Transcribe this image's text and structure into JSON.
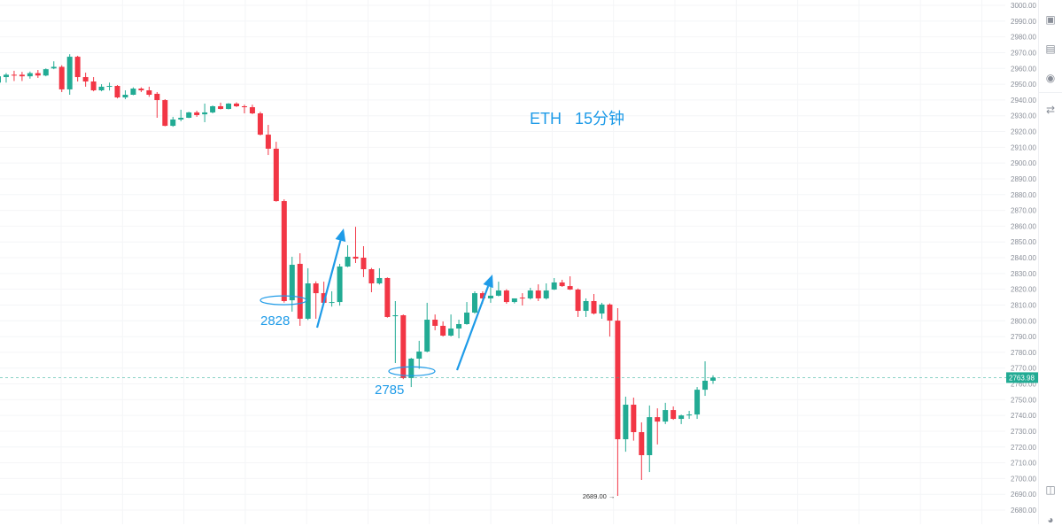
{
  "chart_data": {
    "type": "candlestick",
    "title": "",
    "annotation_title": "ETH   15分钟",
    "interval": "15分钟",
    "symbol": "ETH",
    "ylim": [
      2680,
      3000
    ],
    "yticks": [
      3000,
      2990,
      2980,
      2970,
      2960,
      2950,
      2940,
      2930,
      2920,
      2910,
      2900,
      2890,
      2880,
      2870,
      2860,
      2850,
      2840,
      2830,
      2820,
      2810,
      2800,
      2790,
      2780,
      2770,
      2760,
      2750,
      2740,
      2730,
      2720,
      2710,
      2700,
      2690,
      2680
    ],
    "ytick_decimals": 2,
    "grid": true,
    "colors": {
      "up": "#22ab94",
      "down": "#f23645",
      "annotation": "#1e9be8",
      "last_price_tag": "#22ab94"
    },
    "last_price": "2763.98",
    "low_marker": "2689.00",
    "low_marker_value": 2689.0,
    "annotations": [
      {
        "text": "2828",
        "price": 2813
      },
      {
        "text": "2785",
        "price": 2768
      }
    ],
    "ohlc": [
      [
        2951,
        2956,
        2950,
        2955
      ],
      [
        2954.5,
        2957,
        2951,
        2956
      ],
      [
        2956,
        2958.5,
        2952,
        2955.6
      ],
      [
        2956,
        2957.8,
        2952,
        2955
      ],
      [
        2955,
        2958,
        2953.5,
        2957
      ],
      [
        2957,
        2959,
        2954,
        2955.5
      ],
      [
        2955.5,
        2960,
        2955,
        2959.5
      ],
      [
        2960,
        2964.5,
        2959.5,
        2961
      ],
      [
        2961,
        2962,
        2945,
        2946.7
      ],
      [
        2946.7,
        2969,
        2943.3,
        2967.4
      ],
      [
        2967.4,
        2968,
        2951.7,
        2954.5
      ],
      [
        2954.5,
        2957.3,
        2948.4,
        2951.7
      ],
      [
        2951.7,
        2954.5,
        2945.5,
        2946.1
      ],
      [
        2946.1,
        2950,
        2945.5,
        2948.4
      ],
      [
        2948.4,
        2951,
        2946,
        2948.9
      ],
      [
        2948.9,
        2949.5,
        2941,
        2941.6
      ],
      [
        2941.6,
        2946.1,
        2940.5,
        2943.3
      ],
      [
        2943.3,
        2948,
        2943,
        2947.2
      ],
      [
        2947.2,
        2948,
        2945,
        2946.1
      ],
      [
        2946.1,
        2948.4,
        2942,
        2943.3
      ],
      [
        2943.9,
        2945,
        2928.7,
        2939.9
      ],
      [
        2939.9,
        2940.5,
        2923.3,
        2923.6
      ],
      [
        2923.6,
        2929.3,
        2923,
        2927.6
      ],
      [
        2927.6,
        2933.8,
        2926.5,
        2928.7
      ],
      [
        2928.7,
        2932.5,
        2928.5,
        2932.1
      ],
      [
        2932.1,
        2933.2,
        2929.3,
        2930.4
      ],
      [
        2930.9,
        2937.7,
        2925.9,
        2932.1
      ],
      [
        2932.1,
        2936.5,
        2931.5,
        2936
      ],
      [
        2936,
        2938.3,
        2934,
        2934.3
      ],
      [
        2934.3,
        2938,
        2934,
        2937.7
      ],
      [
        2937.7,
        2938.5,
        2935.5,
        2936
      ],
      [
        2936,
        2937,
        2931.5,
        2935.4
      ],
      [
        2935.4,
        2937,
        2931,
        2931.5
      ],
      [
        2931.5,
        2932.5,
        2917.5,
        2918
      ],
      [
        2918,
        2924.2,
        2905.1,
        2909.1
      ],
      [
        2909.1,
        2913.5,
        2875.5,
        2875.9
      ],
      [
        2875.9,
        2877,
        2811.5,
        2812.5
      ],
      [
        2813,
        2840.6,
        2805.8,
        2835.5
      ],
      [
        2836.1,
        2842.8,
        2796.8,
        2801.3
      ],
      [
        2801.3,
        2833.3,
        2800.5,
        2823.7
      ],
      [
        2823.7,
        2825,
        2801.3,
        2817.5
      ],
      [
        2817.5,
        2824.8,
        2811,
        2811.4
      ],
      [
        2811.4,
        2818.7,
        2809,
        2811.9
      ],
      [
        2811.9,
        2836.1,
        2809.6,
        2834.4
      ],
      [
        2834.4,
        2847.9,
        2834,
        2840.6
      ],
      [
        2840.6,
        2859.6,
        2836.6,
        2839.4
      ],
      [
        2840,
        2847.3,
        2827.7,
        2832.7
      ],
      [
        2832.7,
        2833.5,
        2818.1,
        2823.7
      ],
      [
        2823.7,
        2833.3,
        2823,
        2827.1
      ],
      [
        2827.1,
        2827.5,
        2802,
        2802.4
      ],
      [
        2802.9,
        2812.5,
        2773.2,
        2803.5
      ],
      [
        2803.5,
        2804,
        2763,
        2763.7
      ],
      [
        2763.7,
        2776.5,
        2758,
        2776
      ],
      [
        2776,
        2787.3,
        2769.5,
        2780.5
      ],
      [
        2780.5,
        2811.4,
        2780,
        2800.7
      ],
      [
        2800.7,
        2804,
        2794,
        2796.8
      ],
      [
        2796.8,
        2799.6,
        2790,
        2790.6
      ],
      [
        2790.6,
        2804,
        2790,
        2795.1
      ],
      [
        2795.1,
        2800.7,
        2788.9,
        2797.9
      ],
      [
        2797.9,
        2811.9,
        2797.5,
        2805.2
      ],
      [
        2805.2,
        2818.7,
        2804.5,
        2817.5
      ],
      [
        2817.5,
        2818.7,
        2811,
        2814.2
      ],
      [
        2814.2,
        2824.8,
        2811.4,
        2815.9
      ],
      [
        2815.9,
        2824.8,
        2815.5,
        2819.2
      ],
      [
        2819.2,
        2820,
        2810.8,
        2811.9
      ],
      [
        2811.9,
        2814,
        2811,
        2814.2
      ],
      [
        2814.7,
        2817.5,
        2809.7,
        2814.2
      ],
      [
        2814.2,
        2820.9,
        2813.5,
        2819.2
      ],
      [
        2819.2,
        2823.1,
        2812.5,
        2814.2
      ],
      [
        2814.2,
        2823.7,
        2813.5,
        2819.2
      ],
      [
        2819.8,
        2827.1,
        2819.5,
        2824.3
      ],
      [
        2824.3,
        2826,
        2821.5,
        2822
      ],
      [
        2822,
        2828.2,
        2819.5,
        2819.8
      ],
      [
        2819.8,
        2820.5,
        2802.4,
        2806.3
      ],
      [
        2806.3,
        2814.2,
        2802.4,
        2812.5
      ],
      [
        2812.5,
        2817,
        2804,
        2804.6
      ],
      [
        2804.6,
        2811.4,
        2801.3,
        2810.3
      ],
      [
        2810.3,
        2811,
        2790,
        2800.1
      ],
      [
        2800.1,
        2808,
        2689,
        2724.9
      ],
      [
        2724.9,
        2751.9,
        2717,
        2746.8
      ],
      [
        2746.8,
        2751.3,
        2724,
        2729.4
      ],
      [
        2729.4,
        2735.6,
        2699.1,
        2714.8
      ],
      [
        2714.8,
        2746.3,
        2704.1,
        2738.9
      ],
      [
        2738.9,
        2744.5,
        2721.6,
        2736.1
      ],
      [
        2736.1,
        2748,
        2734.5,
        2743.4
      ],
      [
        2743.4,
        2745.7,
        2737.2,
        2737.8
      ],
      [
        2737.8,
        2740.5,
        2734.5,
        2740
      ],
      [
        2740,
        2742.9,
        2737.8,
        2740.6
      ],
      [
        2740.6,
        2758,
        2737.8,
        2756.3
      ],
      [
        2756.3,
        2774.3,
        2752.4,
        2762
      ],
      [
        2762,
        2765.4,
        2760,
        2763.98
      ]
    ]
  },
  "toolbar": {
    "icons": [
      "code-screen-icon",
      "window-code-icon",
      "robot-icon",
      "swap-icon",
      "layout-icon",
      "headset-icon"
    ]
  }
}
